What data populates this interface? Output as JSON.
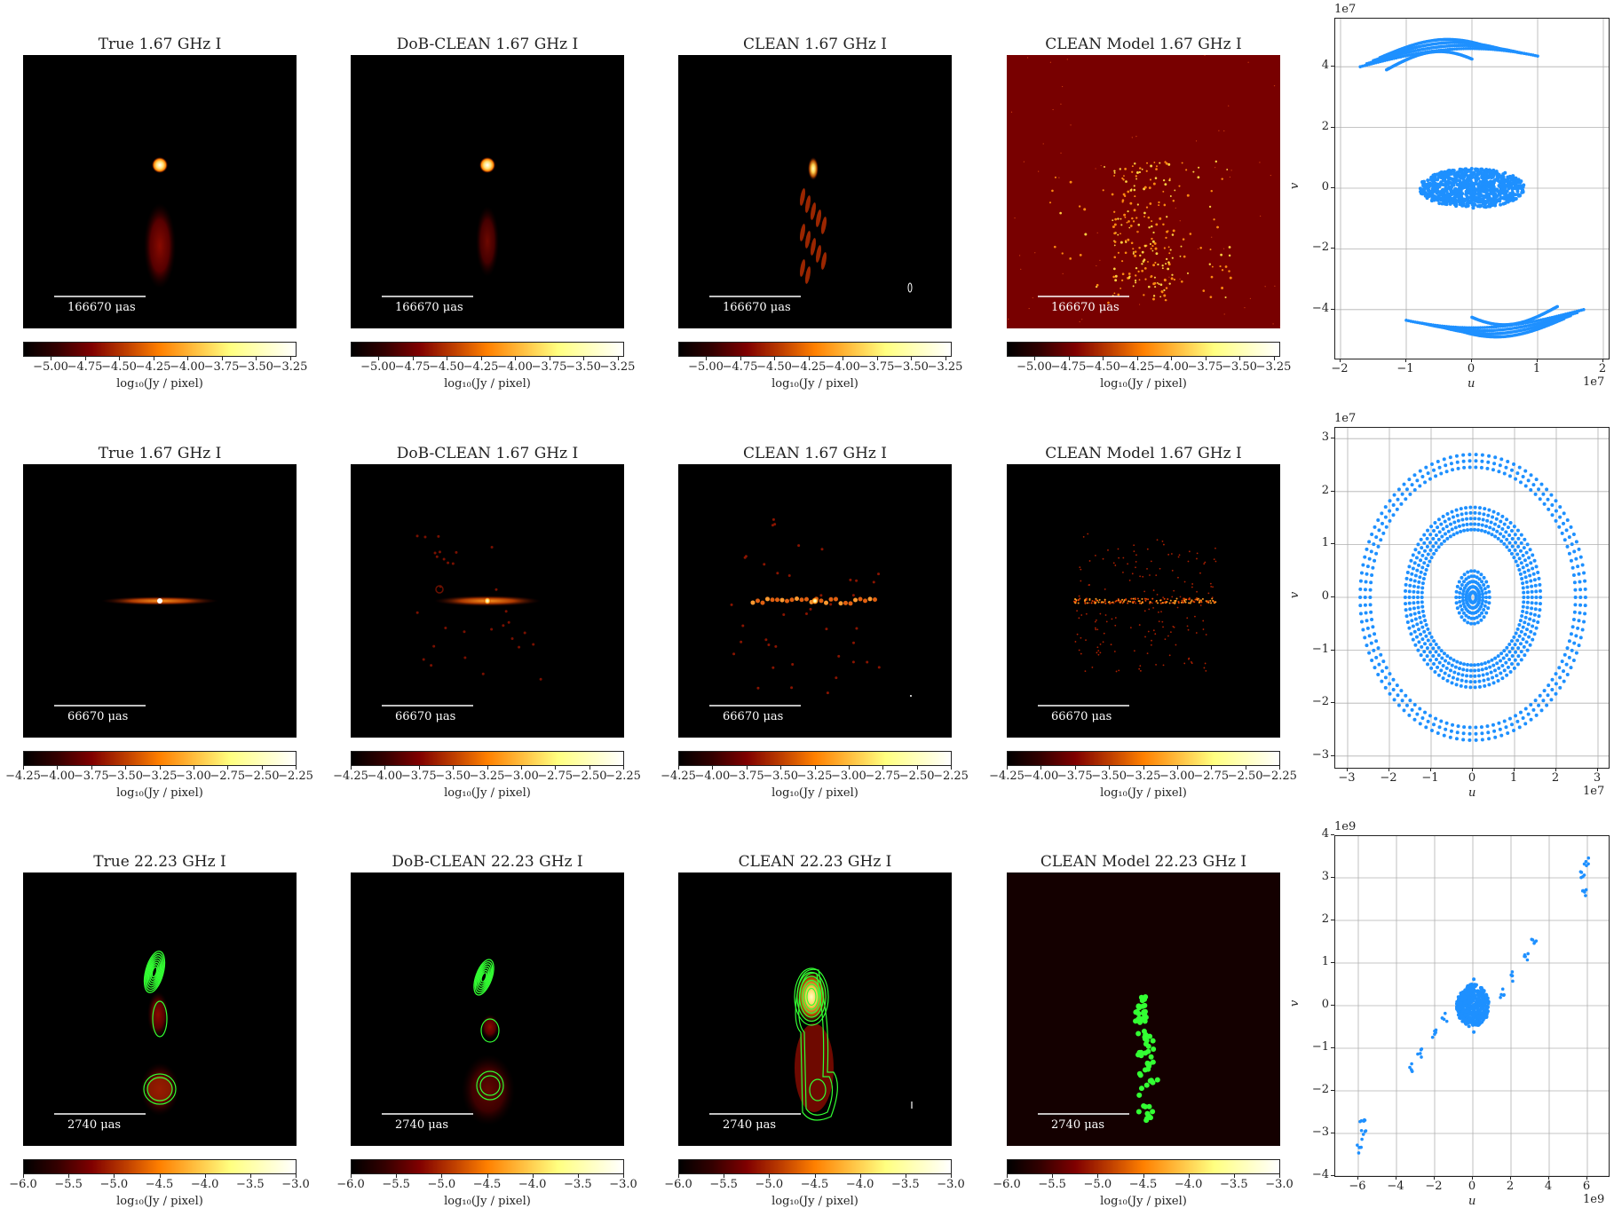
{
  "chart_data": [
    {
      "type": "heatmap",
      "row": 1,
      "colormap": "afmhot",
      "colorbar": {
        "label": "log10(Jy / pixel)",
        "range": [
          -5.2,
          -3.22
        ],
        "ticks": [
          "−5.00",
          "−4.75",
          "−4.50",
          "−4.25",
          "−4.00",
          "−3.75",
          "−3.50",
          "−3.25"
        ]
      },
      "scale_bar": "166670 μas",
      "panels": [
        {
          "title": "True 1.67 GHz I"
        },
        {
          "title": "DoB-CLEAN 1.67 GHz I"
        },
        {
          "title": "CLEAN 1.67 GHz I"
        },
        {
          "title": "CLEAN Model 1.67 GHz I"
        }
      ]
    },
    {
      "type": "heatmap",
      "row": 2,
      "colormap": "afmhot",
      "colorbar": {
        "label": "log10(Jy / pixel)",
        "range": [
          -4.25,
          -2.25
        ],
        "ticks": [
          "−4.25",
          "−4.00",
          "−3.75",
          "−3.50",
          "−3.25",
          "−3.00",
          "−2.75",
          "−2.50",
          "−2.25"
        ]
      },
      "scale_bar": "66670 μas",
      "panels": [
        {
          "title": "True 1.67 GHz I"
        },
        {
          "title": "DoB-CLEAN 1.67 GHz I"
        },
        {
          "title": "CLEAN 1.67 GHz I"
        },
        {
          "title": "CLEAN Model 1.67 GHz I"
        }
      ]
    },
    {
      "type": "heatmap",
      "row": 3,
      "colormap": "afmhot",
      "contours": "green",
      "colorbar": {
        "label": "log10(Jy / pixel)",
        "range": [
          -6.0,
          -3.0
        ],
        "ticks": [
          "−6.0",
          "−5.5",
          "−5.0",
          "−4.5",
          "−4.0",
          "−3.5",
          "−3.0"
        ]
      },
      "scale_bar": "2740 μas",
      "panels": [
        {
          "title": "True 22.23 GHz I"
        },
        {
          "title": "DoB-CLEAN 22.23 GHz I"
        },
        {
          "title": "CLEAN 22.23 GHz I"
        },
        {
          "title": "CLEAN Model 22.23 GHz I"
        }
      ]
    },
    {
      "type": "scatter",
      "title": "uv coverage 1",
      "xlabel": "u",
      "ylabel": "v",
      "x_exponent": "1e7",
      "y_exponent": "1e7",
      "xlim": [
        -2.1,
        2.1
      ],
      "ylim": [
        -5.6,
        5.6
      ],
      "xticks": [
        "−2",
        "−1",
        "0",
        "1",
        "2"
      ],
      "yticks": [
        "−4",
        "−2",
        "0",
        "2",
        "4"
      ],
      "grid": true,
      "color": "#1e90ff",
      "description": "Central cluster |u|<0.85, |v|<0.7; upper arcs v≈3.7–4.7 for u −1.7…1.0; lower arcs v≈−3.7…−4.7 for u −1.0…1.7"
    },
    {
      "type": "scatter",
      "title": "uv coverage 2",
      "xlabel": "u",
      "ylabel": "v",
      "x_exponent": "1e7",
      "y_exponent": "1e7",
      "xlim": [
        -3.3,
        3.3
      ],
      "ylim": [
        -3.2,
        3.2
      ],
      "xticks": [
        "−3",
        "−2",
        "−1",
        "0",
        "1",
        "2",
        "3"
      ],
      "yticks": [
        "−3",
        "−2",
        "−1",
        "0",
        "1",
        "2",
        "3"
      ],
      "grid": true,
      "color": "#1e90ff",
      "description": "Concentric ellipses: inner radius ≈0.5, middle ring u≈±1.6 v≈±1.7, outer ring u≈±2.7 v≈±2.7"
    },
    {
      "type": "scatter",
      "title": "uv coverage 3",
      "xlabel": "u",
      "ylabel": "v",
      "x_exponent": "1e9",
      "y_exponent": "1e9",
      "xlim": [
        -7.1,
        7.1
      ],
      "ylim": [
        -4,
        4
      ],
      "xticks": [
        "−6",
        "−4",
        "−2",
        "0",
        "2",
        "4",
        "6"
      ],
      "yticks": [
        "−4",
        "−3",
        "−2",
        "−1",
        "0",
        "1",
        "2",
        "3",
        "4"
      ],
      "grid": true,
      "color": "#1e90ff",
      "clusters": [
        {
          "u": 0,
          "v": 0,
          "note": "dense central cluster radius ~0.8"
        },
        {
          "u": 2.05,
          "v": 0.68
        },
        {
          "u": -2.05,
          "v": -0.68
        },
        {
          "u": 1.5,
          "v": 0.3
        },
        {
          "u": -1.5,
          "v": -0.3
        },
        {
          "u": 2.8,
          "v": 1.1
        },
        {
          "u": -2.8,
          "v": -1.1
        },
        {
          "u": 3.2,
          "v": 1.45
        },
        {
          "u": -3.2,
          "v": -1.45
        },
        {
          "u": 5.7,
          "v": 3.05
        },
        {
          "u": -5.7,
          "v": -3.05
        },
        {
          "u": 5.95,
          "v": 3.35
        },
        {
          "u": -5.95,
          "v": -3.35
        },
        {
          "u": 5.8,
          "v": 2.65
        },
        {
          "u": -5.8,
          "v": -2.65
        }
      ]
    }
  ],
  "rows": [
    {
      "titles": [
        "True 1.67 GHz I",
        "DoB-CLEAN 1.67 GHz I",
        "CLEAN 1.67 GHz I",
        "CLEAN Model 1.67 GHz I"
      ],
      "scale": "166670 μas",
      "ticks": [
        "−5.00",
        "−4.75",
        "−4.50",
        "−4.25",
        "−4.00",
        "−3.75",
        "−3.50",
        "−3.25"
      ],
      "cbar_label": "log₁₀(Jy / pixel)"
    },
    {
      "titles": [
        "True 1.67 GHz I",
        "DoB-CLEAN 1.67 GHz I",
        "CLEAN 1.67 GHz I",
        "CLEAN Model 1.67 GHz I"
      ],
      "scale": "66670 μas",
      "ticks": [
        "−4.25",
        "−4.00",
        "−3.75",
        "−3.50",
        "−3.25",
        "−3.00",
        "−2.75",
        "−2.50",
        "−2.25"
      ],
      "cbar_label": "log₁₀(Jy / pixel)"
    },
    {
      "titles": [
        "True 22.23 GHz I",
        "DoB-CLEAN 22.23 GHz I",
        "CLEAN 22.23 GHz I",
        "CLEAN Model 22.23 GHz I"
      ],
      "scale": "2740 μas",
      "ticks": [
        "−6.0",
        "−5.5",
        "−5.0",
        "−4.5",
        "−4.0",
        "−3.5",
        "−3.0"
      ],
      "cbar_label": "log₁₀(Jy / pixel)"
    }
  ],
  "uv": [
    {
      "xticks": [
        "−2",
        "−1",
        "0",
        "1",
        "2"
      ],
      "yticks": [
        "4",
        "2",
        "0",
        "−2",
        "−4"
      ],
      "xexp": "1e7",
      "yexp": "1e7",
      "xlabel": "u",
      "ylabel": "v"
    },
    {
      "xticks": [
        "−3",
        "−2",
        "−1",
        "0",
        "1",
        "2",
        "3"
      ],
      "yticks": [
        "3",
        "2",
        "1",
        "0",
        "−1",
        "−2",
        "−3"
      ],
      "xexp": "1e7",
      "yexp": "1e7",
      "xlabel": "u",
      "ylabel": "v"
    },
    {
      "xticks": [
        "−6",
        "−4",
        "−2",
        "0",
        "2",
        "4",
        "6"
      ],
      "yticks": [
        "4",
        "3",
        "2",
        "1",
        "0",
        "−1",
        "−2",
        "−3",
        "−4"
      ],
      "xexp": "1e9",
      "yexp": "1e9",
      "xlabel": "u",
      "ylabel": "v"
    }
  ],
  "colors": {
    "scatter": "#1e90ff",
    "contour": "#33ff33",
    "grid": "#b0b0b0"
  }
}
